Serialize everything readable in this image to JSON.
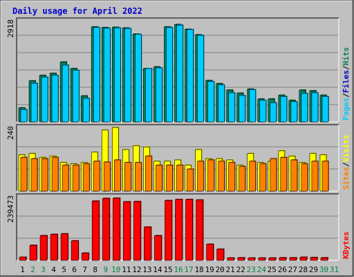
{
  "title": "Daily usage for April 2022",
  "colors": {
    "background": "#c0c0c0",
    "title": "#0000cc",
    "grid": "#808080",
    "hits": "#00805c",
    "files": "#00ccff",
    "sites": "#ff8000",
    "visits": "#ffff00",
    "kbytes": "#ff0000",
    "weekday_label": "#000000",
    "weekend_label": "#008040"
  },
  "chart_data": [
    {
      "type": "bar",
      "panel": "hits_files_pages",
      "categories": [
        "1",
        "2",
        "3",
        "4",
        "5",
        "6",
        "7",
        "8",
        "9",
        "10",
        "11",
        "12",
        "13",
        "14",
        "15",
        "16",
        "17",
        "18",
        "19",
        "20",
        "21",
        "22",
        "23",
        "24",
        "25",
        "26",
        "27",
        "28",
        "29",
        "30",
        "31"
      ],
      "ymax_label": "2918",
      "ylim": [
        0,
        2918
      ],
      "right_label": [
        "Pages",
        "Files",
        "Hits"
      ],
      "series": [
        {
          "name": "Hits",
          "values": [
            410,
            1200,
            1360,
            1420,
            1750,
            1560,
            760,
            2780,
            2760,
            2770,
            2750,
            2570,
            1560,
            1610,
            2780,
            2850,
            2710,
            2550,
            1210,
            1120,
            930,
            840,
            960,
            670,
            670,
            780,
            630,
            930,
            910,
            780,
            0
          ]
        },
        {
          "name": "Files",
          "values": [
            360,
            1130,
            1310,
            1360,
            1660,
            1510,
            690,
            2760,
            2740,
            2750,
            2730,
            2560,
            1560,
            1580,
            2760,
            2830,
            2700,
            2530,
            1180,
            1080,
            850,
            770,
            940,
            630,
            560,
            740,
            590,
            830,
            850,
            740,
            0
          ]
        }
      ]
    },
    {
      "type": "bar",
      "panel": "visits_sites",
      "categories": [
        "1",
        "2",
        "3",
        "4",
        "5",
        "6",
        "7",
        "8",
        "9",
        "10",
        "11",
        "12",
        "13",
        "14",
        "15",
        "16",
        "17",
        "18",
        "19",
        "20",
        "21",
        "22",
        "23",
        "24",
        "25",
        "26",
        "27",
        "28",
        "29",
        "30",
        "31"
      ],
      "ymax_label": "240",
      "ylim": [
        0,
        240
      ],
      "right_label": [
        "Sites",
        "Visits"
      ],
      "series": [
        {
          "name": "Visits",
          "values": [
            140,
            145,
            130,
            135,
            110,
            105,
            110,
            150,
            235,
            245,
            160,
            175,
            170,
            115,
            115,
            120,
            100,
            160,
            125,
            125,
            120,
            100,
            145,
            110,
            115,
            155,
            135,
            110,
            145,
            140,
            0
          ]
        },
        {
          "name": "Sites",
          "values": [
            130,
            125,
            125,
            130,
            100,
            100,
            105,
            115,
            112,
            120,
            110,
            110,
            135,
            100,
            100,
            100,
            85,
            115,
            120,
            115,
            110,
            95,
            115,
            105,
            125,
            130,
            120,
            105,
            115,
            115,
            0
          ]
        }
      ]
    },
    {
      "type": "bar",
      "panel": "kbytes",
      "categories": [
        "1",
        "2",
        "3",
        "4",
        "5",
        "6",
        "7",
        "8",
        "9",
        "10",
        "11",
        "12",
        "13",
        "14",
        "15",
        "16",
        "17",
        "18",
        "19",
        "20",
        "21",
        "22",
        "23",
        "24",
        "25",
        "26",
        "27",
        "28",
        "29",
        "30",
        "31"
      ],
      "ymax_label": "239473",
      "ylim": [
        0,
        239473
      ],
      "right_label": [
        "KBytes"
      ],
      "series": [
        {
          "name": "KBytes",
          "values": [
            12000,
            58000,
            95000,
            100000,
            102000,
            75000,
            28000,
            228000,
            238000,
            239000,
            225000,
            226000,
            128000,
            95000,
            230000,
            234000,
            234000,
            232000,
            62000,
            43000,
            9000,
            10000,
            9000,
            9000,
            9000,
            10000,
            10000,
            12000,
            11000,
            10000,
            0
          ]
        }
      ]
    }
  ],
  "day_labels": [
    "1",
    "2",
    "3",
    "4",
    "5",
    "6",
    "7",
    "8",
    "9",
    "10",
    "11",
    "12",
    "13",
    "14",
    "15",
    "16",
    "17",
    "18",
    "19",
    "20",
    "21",
    "22",
    "23",
    "24",
    "25",
    "26",
    "27",
    "28",
    "29",
    "30",
    "31"
  ],
  "weekend_days": [
    "2",
    "3",
    "9",
    "10",
    "16",
    "17",
    "23",
    "24",
    "30",
    "31"
  ]
}
